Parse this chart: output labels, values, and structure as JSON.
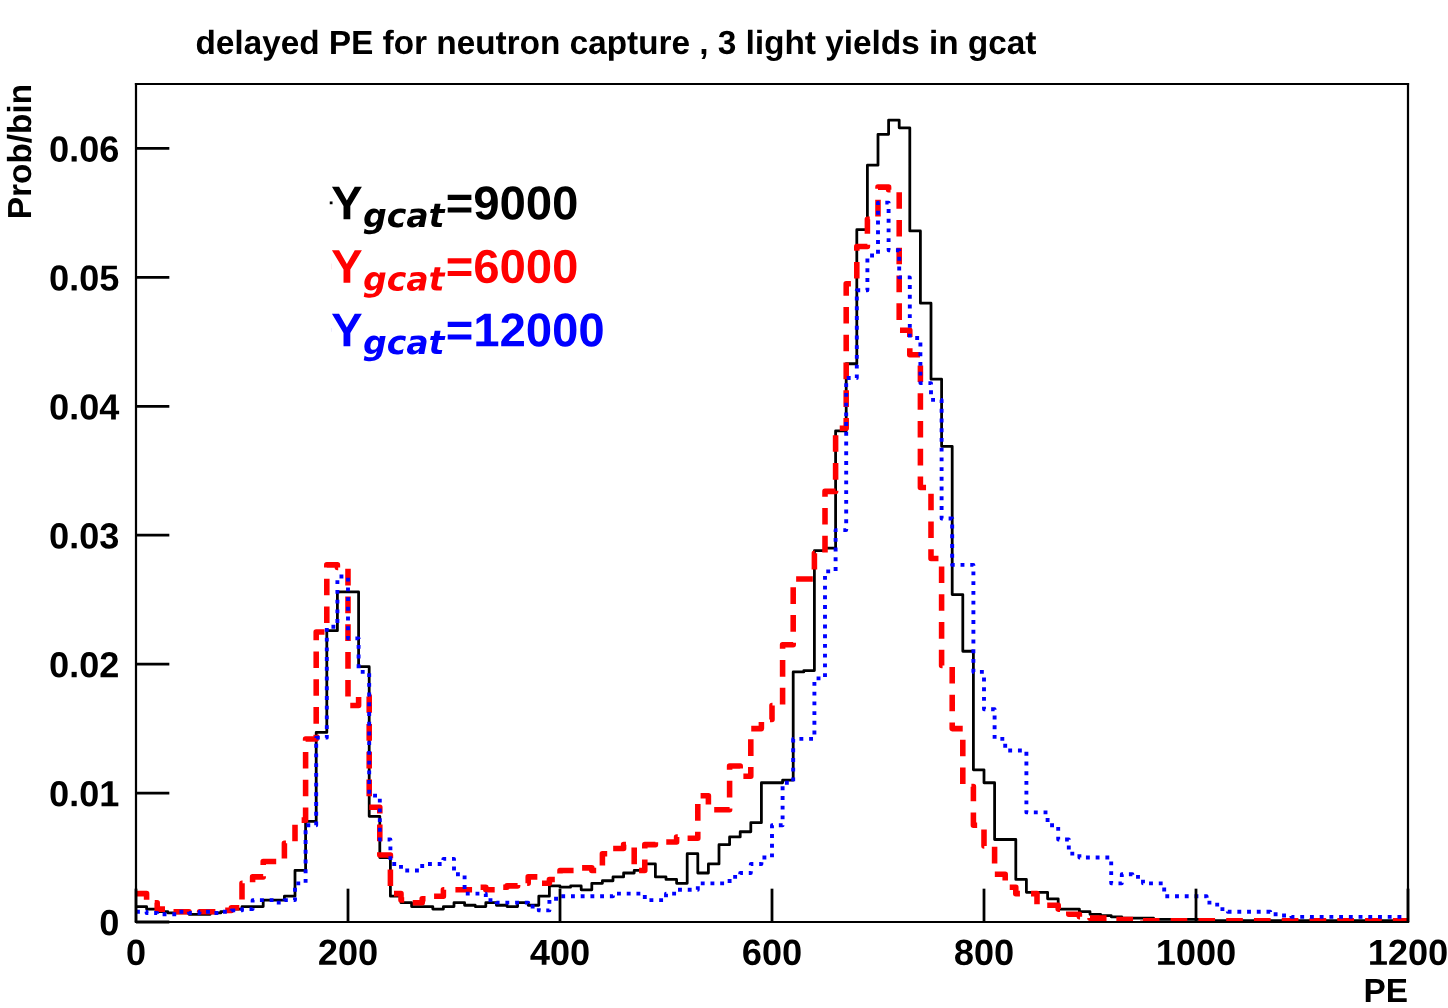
{
  "chart_data": {
    "type": "histogram",
    "title": "delayed PE for neutron capture , 3 light yields in gcat",
    "xlabel": "PE",
    "ylabel": "Prob/bin",
    "bins": [
      0,
      10,
      20,
      30,
      40,
      50,
      60,
      70,
      80,
      90,
      100,
      110,
      120,
      130,
      140,
      150,
      160,
      170,
      180,
      190,
      200,
      210,
      220,
      230,
      240,
      250,
      260,
      270,
      280,
      290,
      300,
      310,
      320,
      330,
      340,
      350,
      360,
      370,
      380,
      390,
      400,
      410,
      420,
      430,
      440,
      450,
      460,
      470,
      480,
      490,
      500,
      510,
      520,
      530,
      540,
      550,
      560,
      570,
      580,
      590,
      600,
      610,
      620,
      630,
      640,
      650,
      660,
      670,
      680,
      690,
      700,
      710,
      720,
      730,
      740,
      750,
      760,
      770,
      780,
      790,
      800,
      810,
      820,
      830,
      840,
      850,
      860,
      870,
      880,
      890,
      900,
      910,
      920,
      930,
      940,
      950,
      960,
      970,
      980,
      990,
      1000,
      1010,
      1020,
      1030,
      1040,
      1050,
      1060,
      1070,
      1080,
      1090,
      1100,
      1110,
      1120,
      1130,
      1140,
      1150,
      1160,
      1170,
      1180,
      1190,
      1200
    ],
    "series": [
      {
        "name": "Y$_{gcat}$=9000",
        "color": "#000000",
        "line_style": "solid",
        "values": [
          0.0012,
          0.001,
          0.0008,
          0.0007,
          0.0007,
          0.0006,
          0.0006,
          0.0007,
          0.0008,
          0.001,
          0.0012,
          0.0012,
          0.0017,
          0.0017,
          0.002,
          0.004,
          0.0078,
          0.0147,
          0.0226,
          0.0256,
          0.0256,
          0.0198,
          0.0082,
          0.005,
          0.002,
          0.0015,
          0.0012,
          0.0012,
          0.001,
          0.0012,
          0.0015,
          0.0013,
          0.0012,
          0.0015,
          0.0013,
          0.0012,
          0.0015,
          0.0013,
          0.002,
          0.0028,
          0.0027,
          0.0028,
          0.0025,
          0.003,
          0.0032,
          0.0035,
          0.0038,
          0.004,
          0.0045,
          0.0035,
          0.0033,
          0.003,
          0.0053,
          0.0038,
          0.0045,
          0.006,
          0.0066,
          0.007,
          0.0077,
          0.0108,
          0.0108,
          0.011,
          0.0194,
          0.0195,
          0.0288,
          0.029,
          0.0381,
          0.0433,
          0.0537,
          0.0587,
          0.0611,
          0.0622,
          0.0616,
          0.0536,
          0.048,
          0.0421,
          0.0369,
          0.0254,
          0.021,
          0.0118,
          0.0108,
          0.0064,
          0.0064,
          0.0033,
          0.0023,
          0.0023,
          0.0018,
          0.001,
          0.001,
          0.0008,
          0.0006,
          0.0005,
          0.0004,
          0.0003,
          0.0003,
          0.0003,
          0.0002,
          0.0002,
          0.0002,
          0.0002,
          0.0002,
          0.0001,
          0.0001,
          0.0001,
          0.0001,
          0.0001,
          0.0001,
          0.0001,
          0.0001,
          0.0001,
          0.0001,
          0.0001,
          0.0001,
          0.0001,
          0.0001,
          0.0001,
          0.0001,
          0.0001,
          0.0001,
          0.0001
        ]
      },
      {
        "name": "Y$_{gcat}$=6000",
        "color": "#ff0000",
        "line_style": "dashed",
        "values": [
          0.0022,
          0.0015,
          0.001,
          0.0008,
          0.0008,
          0.0007,
          0.0008,
          0.0008,
          0.0009,
          0.0011,
          0.003,
          0.0035,
          0.0047,
          0.0047,
          0.0061,
          0.0079,
          0.0142,
          0.0225,
          0.0277,
          0.0275,
          0.0168,
          0.0175,
          0.0089,
          0.0052,
          0.0022,
          0.0017,
          0.0015,
          0.0018,
          0.002,
          0.0025,
          0.0025,
          0.0025,
          0.0027,
          0.0025,
          0.0027,
          0.0028,
          0.003,
          0.0035,
          0.003,
          0.0033,
          0.004,
          0.004,
          0.0042,
          0.004,
          0.0053,
          0.0057,
          0.006,
          0.004,
          0.006,
          0.0062,
          0.0062,
          0.0066,
          0.0065,
          0.0098,
          0.0087,
          0.0087,
          0.0121,
          0.0113,
          0.015,
          0.0157,
          0.0168,
          0.0215,
          0.0266,
          0.0266,
          0.0286,
          0.0334,
          0.0383,
          0.0495,
          0.0524,
          0.0545,
          0.057,
          0.0568,
          0.0459,
          0.044,
          0.0337,
          0.0282,
          0.0199,
          0.015,
          0.0105,
          0.0075,
          0.0059,
          0.0037,
          0.0027,
          0.0022,
          0.0022,
          0.0013,
          0.0013,
          0.001,
          0.0006,
          0.0004,
          0.0003,
          0.0003,
          0.0002,
          0.0002,
          0.0002,
          0.0001,
          0.0001,
          0.0001,
          0.0001,
          0.0001,
          0.0001,
          0.0001,
          0.0001,
          0.0001,
          0.0001,
          0.0001,
          0.0001,
          0.0001,
          0.0001,
          0.0001,
          0.0001,
          0.0001,
          0.0001,
          0.0001,
          0.0001,
          0.0001,
          0.0001,
          0.0001,
          0.0001,
          0.0001
        ]
      },
      {
        "name": "Y$_{gcat}$=12000",
        "color": "#0000ff",
        "line_style": "dotted",
        "values": [
          0.0008,
          0.0007,
          0.0006,
          0.0006,
          0.0008,
          0.0007,
          0.0008,
          0.0007,
          0.0008,
          0.0009,
          0.001,
          0.0017,
          0.0017,
          0.0015,
          0.0017,
          0.003,
          0.0075,
          0.0143,
          0.0229,
          0.0268,
          0.022,
          0.0194,
          0.0098,
          0.0064,
          0.0045,
          0.004,
          0.004,
          0.0045,
          0.0045,
          0.0049,
          0.0037,
          0.0022,
          0.0022,
          0.0017,
          0.0015,
          0.0015,
          0.0015,
          0.0012,
          0.0009,
          0.0018,
          0.002,
          0.002,
          0.002,
          0.002,
          0.002,
          0.0022,
          0.0022,
          0.0022,
          0.0017,
          0.0017,
          0.0022,
          0.0025,
          0.0025,
          0.003,
          0.003,
          0.003,
          0.0035,
          0.0038,
          0.0045,
          0.005,
          0.0075,
          0.0108,
          0.0142,
          0.0142,
          0.0189,
          0.0272,
          0.0304,
          0.0422,
          0.049,
          0.0517,
          0.0558,
          0.0521,
          0.05,
          0.0453,
          0.0418,
          0.0405,
          0.0313,
          0.0277,
          0.0277,
          0.0194,
          0.0165,
          0.0142,
          0.0133,
          0.0133,
          0.0085,
          0.0085,
          0.0075,
          0.0064,
          0.0053,
          0.005,
          0.005,
          0.005,
          0.003,
          0.0037,
          0.0035,
          0.003,
          0.003,
          0.002,
          0.002,
          0.002,
          0.002,
          0.0015,
          0.001,
          0.0008,
          0.0008,
          0.0008,
          0.0008,
          0.0006,
          0.0005,
          0.0004,
          0.0004,
          0.0004,
          0.0004,
          0.0004,
          0.0004,
          0.0004,
          0.0004,
          0.0004,
          0.0004,
          0.0004
        ]
      }
    ],
    "xlim": [
      0,
      1200
    ],
    "xticks": [
      0,
      200,
      400,
      600,
      800,
      1000,
      1200
    ],
    "ylim": [
      0,
      0.065
    ],
    "yticks": [
      0,
      0.01,
      0.02,
      0.03,
      0.04,
      0.05,
      0.06
    ],
    "grid": false,
    "legend": "top left"
  }
}
